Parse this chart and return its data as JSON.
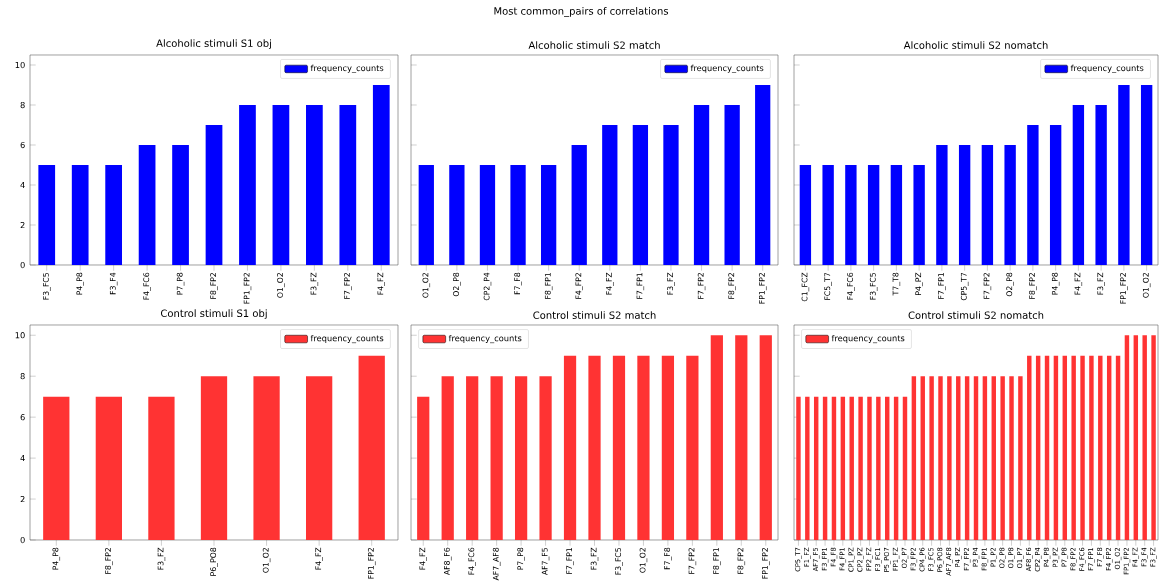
{
  "chart_data": [
    {
      "type": "bar",
      "title": "Alcoholic stimuli S1 obj",
      "annotations": [
        "Most common_pairs of correlations"
      ],
      "categories": [
        "F3_FC5",
        "P4_P8",
        "F3_F4",
        "F4_FC6",
        "P7_P8",
        "F8_FP2",
        "FP1_FP2",
        "O1_O2",
        "F3_FZ",
        "F7_FP2",
        "F4_FZ"
      ],
      "series": [
        {
          "name": "frequency_counts",
          "color": "#0000ff",
          "values": [
            5,
            5,
            5,
            6,
            6,
            7,
            8,
            8,
            8,
            8,
            9
          ]
        }
      ],
      "ylim": [
        0,
        10.5
      ],
      "yticks": [
        0,
        2,
        4,
        6,
        8,
        10
      ],
      "legend": "top right"
    },
    {
      "type": "bar",
      "title": "Alcoholic stimuli S2 match",
      "categories": [
        "O1_O2",
        "O2_P8",
        "CP2_P4",
        "F7_F8",
        "F8_FP1",
        "F4_FP2",
        "F4_FZ",
        "F7_FP1",
        "F3_FZ",
        "F7_FP2",
        "F8_FP2",
        "FP1_FP2"
      ],
      "series": [
        {
          "name": "frequency_counts",
          "color": "#0000ff",
          "values": [
            5,
            5,
            5,
            5,
            5,
            6,
            7,
            7,
            7,
            8,
            8,
            9
          ]
        }
      ],
      "ylim": [
        0,
        10.5
      ],
      "yticks": [
        0,
        2,
        4,
        6,
        8,
        10
      ],
      "legend": "top right",
      "tick_labels": "x"
    },
    {
      "type": "bar",
      "title": "Alcoholic stimuli S2 nomatch",
      "categories": [
        "C1_FCZ",
        "FC5_T7",
        "F4_FC6",
        "F3_FC5",
        "T7_T8",
        "P4_PZ",
        "F7_FP1",
        "CP5_T7",
        "F7_FP2",
        "O2_P8",
        "F8_FP2",
        "P4_P8",
        "F4_FZ",
        "F3_FZ",
        "FP1_FP2",
        "O1_O2"
      ],
      "series": [
        {
          "name": "frequency_counts",
          "color": "#0000ff",
          "values": [
            5,
            5,
            5,
            5,
            5,
            5,
            6,
            6,
            6,
            6,
            7,
            7,
            8,
            8,
            9,
            9
          ]
        }
      ],
      "ylim": [
        0,
        10.5
      ],
      "yticks": [
        0,
        2,
        4,
        6,
        8,
        10
      ],
      "legend": "top right",
      "tick_labels": "x"
    },
    {
      "type": "bar",
      "title": "Control stimuli S1 obj",
      "categories": [
        "P4_P8",
        "F8_FP2",
        "F3_FZ",
        "P6_PO8",
        "O1_O2",
        "F4_FZ",
        "FP1_FP2"
      ],
      "series": [
        {
          "name": "frequency_counts",
          "color": "#ff3333",
          "values": [
            7,
            7,
            7,
            8,
            8,
            8,
            9
          ]
        }
      ],
      "ylim": [
        0,
        10.5
      ],
      "yticks": [
        0,
        2,
        4,
        6,
        8,
        10
      ],
      "legend": "top right"
    },
    {
      "type": "bar",
      "title": "Control stimuli S2 match",
      "categories": [
        "F4_FZ",
        "AF8_F6",
        "F4_FC6",
        "AF7_AF8",
        "P7_P8",
        "AF7_F5",
        "F7_FP1",
        "F3_FZ",
        "F3_FC5",
        "O1_O2",
        "F7_F8",
        "F7_FP2",
        "F8_FP1",
        "F8_FP2",
        "FP1_FP2"
      ],
      "series": [
        {
          "name": "frequency_counts",
          "color": "#ff3333",
          "values": [
            7,
            8,
            8,
            8,
            8,
            8,
            9,
            9,
            9,
            9,
            9,
            9,
            10,
            10,
            10
          ]
        }
      ],
      "ylim": [
        0,
        10.5
      ],
      "yticks": [
        0,
        2,
        4,
        6,
        8,
        10
      ],
      "legend": "top left",
      "tick_labels": "x"
    },
    {
      "type": "bar",
      "title": "Control stimuli S2 nomatch",
      "categories": [
        "CP5_T7",
        "F1_FZ",
        "AF7_F5",
        "F3_FP1",
        "F4_F8",
        "F4_FP1",
        "CP1_PZ",
        "CP2_PZ",
        "FP2_FZ",
        "F3_FC1",
        "P5_PO7",
        "FP1_FZ",
        "O2_P7",
        "F3_FP2",
        "CP4_P6",
        "F3_FC5",
        "P6_PO8",
        "AF7_AF8",
        "P4_PZ",
        "F7_FP2",
        "P3_P4",
        "F8_FP1",
        "P1_P2",
        "O2_P8",
        "O1_P8",
        "O1_P7",
        "AF8_F6",
        "CP2_P4",
        "P4_P8",
        "P3_PZ",
        "P7_P8",
        "F8_FP2",
        "F4_FC6",
        "F7_FP1",
        "F7_F8",
        "F4_FP2",
        "O1_O2",
        "FP1_FP2",
        "F4_FZ",
        "F3_F4",
        "F3_FZ"
      ],
      "series": [
        {
          "name": "frequency_counts",
          "color": "#ff3333",
          "values": [
            7,
            7,
            7,
            7,
            7,
            7,
            7,
            7,
            7,
            7,
            7,
            7,
            7,
            8,
            8,
            8,
            8,
            8,
            8,
            8,
            8,
            8,
            8,
            8,
            8,
            8,
            9,
            9,
            9,
            9,
            9,
            9,
            9,
            9,
            9,
            9,
            9,
            10,
            10,
            10,
            10
          ]
        }
      ],
      "ylim": [
        0,
        10.5
      ],
      "yticks": [
        0,
        2,
        4,
        6,
        8,
        10
      ],
      "legend": "top left",
      "tick_labels": "x"
    }
  ]
}
